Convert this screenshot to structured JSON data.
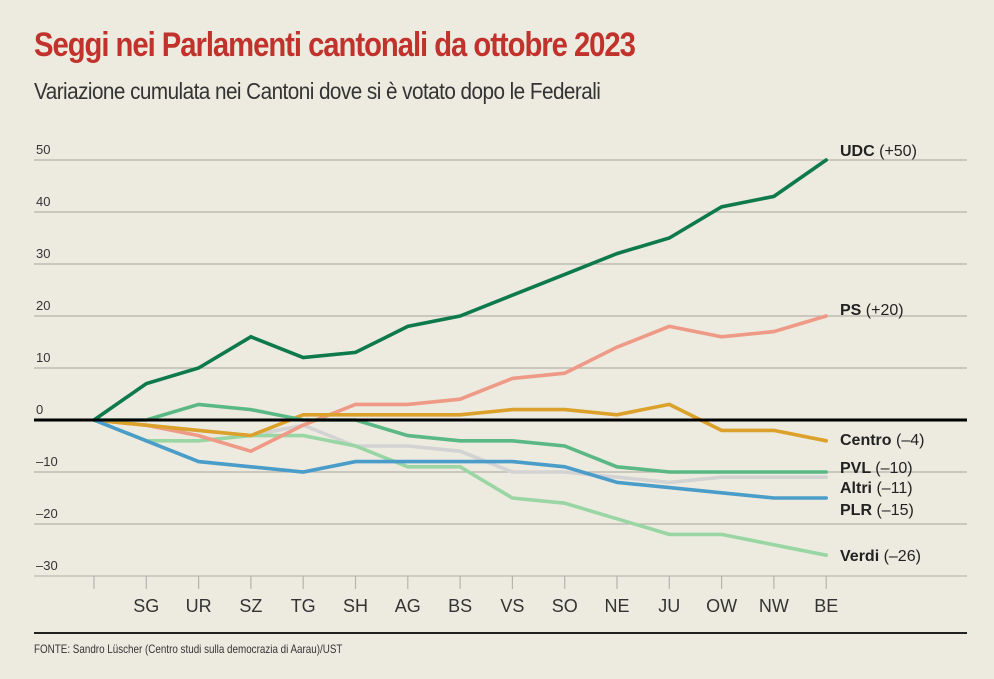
{
  "header": {
    "title": "Seggi nei Parlamenti cantonali da ottobre 2023",
    "subtitle": "Variazione cumulata nei Cantoni dove si è votato dopo le Federali"
  },
  "footer": {
    "source": "FONTE: Sandro Lüscher (Centro studi sulla democrazia di Aarau)/UST"
  },
  "chart_data": {
    "type": "line",
    "title": "Seggi nei Parlamenti cantonali da ottobre 2023",
    "subtitle": "Variazione cumulata nei Cantoni dove si è votato dopo le Federali",
    "xlabel": "",
    "ylabel": "",
    "categories": [
      "",
      "SG",
      "UR",
      "SZ",
      "TG",
      "SH",
      "AG",
      "BS",
      "VS",
      "SO",
      "NE",
      "JU",
      "OW",
      "NW",
      "BE"
    ],
    "ylim": [
      -30,
      50
    ],
    "yticks": [
      50,
      40,
      30,
      20,
      10,
      0,
      -10,
      -20,
      -30
    ],
    "ytick_labels": [
      "50",
      "40",
      "30",
      "20",
      "10",
      "0",
      "–10",
      "–20",
      "–30"
    ],
    "grid": true,
    "legend": "right (direct labels at line ends)",
    "series": [
      {
        "name": "UDC",
        "final_label": "(+50)",
        "color": "#0e7a4b",
        "values": [
          0,
          7,
          10,
          16,
          12,
          13,
          18,
          20,
          24,
          28,
          32,
          35,
          41,
          43,
          50
        ]
      },
      {
        "name": "PS",
        "final_label": "(+20)",
        "color": "#ee9a86",
        "values": [
          0,
          -1,
          -3,
          -6,
          -1,
          3,
          3,
          4,
          8,
          9,
          14,
          18,
          16,
          17,
          20
        ]
      },
      {
        "name": "Centro",
        "final_label": "(–4)",
        "color": "#dba12b",
        "values": [
          0,
          -1,
          -2,
          -3,
          1,
          1,
          1,
          1,
          2,
          2,
          1,
          3,
          -2,
          -2,
          -4
        ]
      },
      {
        "name": "PVL",
        "final_label": "(–10)",
        "color": "#5ab884",
        "values": [
          0,
          0,
          3,
          2,
          0,
          0,
          -3,
          -4,
          -4,
          -5,
          -9,
          -10,
          -10,
          -10,
          -10
        ]
      },
      {
        "name": "Altri",
        "final_label": "(–11)",
        "color": "#d3d3d3",
        "values": [
          0,
          -1,
          -2,
          -3,
          -1,
          -5,
          -5,
          -6,
          -10,
          -10,
          -11,
          -12,
          -11,
          -11,
          -11
        ]
      },
      {
        "name": "PLR",
        "final_label": "(–15)",
        "color": "#4a9cc9",
        "values": [
          0,
          -4,
          -8,
          -9,
          -10,
          -8,
          -8,
          -8,
          -8,
          -9,
          -12,
          -13,
          -14,
          -15,
          -15
        ]
      },
      {
        "name": "Verdi",
        "final_label": "(–26)",
        "color": "#99d6a4",
        "values": [
          0,
          -4,
          -4,
          -3,
          -3,
          -5,
          -9,
          -9,
          -15,
          -16,
          -19,
          -22,
          -22,
          -24,
          -26
        ]
      }
    ],
    "zero_line": true
  }
}
